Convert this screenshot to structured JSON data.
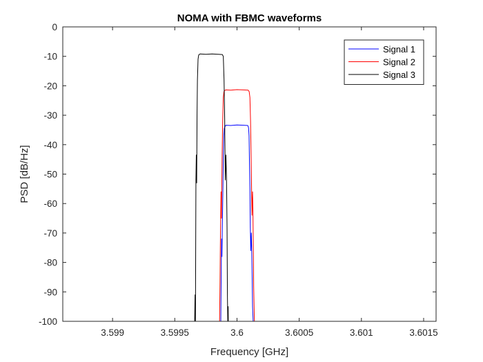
{
  "chart_data": {
    "type": "line",
    "title": "NOMA with FBMC waveforms",
    "xlabel": "Frequency [GHz]",
    "ylabel": "PSD [dB/Hz]",
    "xlim": [
      3.5986,
      3.6016
    ],
    "ylim": [
      -100,
      0
    ],
    "xticks": [
      3.599,
      3.5995,
      3.6,
      3.6005,
      3.601,
      3.6015
    ],
    "xtick_labels": [
      "3.599",
      "3.5995",
      "3.6",
      "3.6005",
      "3.601",
      "3.6015"
    ],
    "yticks": [
      0,
      -10,
      -20,
      -30,
      -40,
      -50,
      -60,
      -70,
      -80,
      -90,
      -100
    ],
    "ytick_labels": [
      "0",
      "-10",
      "-20",
      "-30",
      "-40",
      "-50",
      "-60",
      "-70",
      "-80",
      "-90",
      "-100"
    ],
    "grid": false,
    "legend_position": "top-right",
    "series": [
      {
        "name": "Signal 1",
        "color": "#0000ff",
        "x": [
          3.59987,
          3.599873,
          3.599876,
          3.599879,
          3.599882,
          3.599887,
          3.59989,
          3.599894,
          3.599898,
          3.599902,
          3.599906,
          3.59991,
          3.59995,
          3.6,
          3.60005,
          3.600086,
          3.60009,
          3.600093,
          3.600097,
          3.6001,
          3.600104,
          3.600107,
          3.600111,
          3.600115,
          3.600118,
          3.600122,
          3.600125,
          3.60013
        ],
        "y": [
          -100,
          -85,
          -72,
          -78,
          -68,
          -55,
          -45,
          -37,
          -34.5,
          -34,
          -33.7,
          -33.4,
          -33.5,
          -33.3,
          -33.4,
          -33.5,
          -33.8,
          -34.3,
          -37,
          -45,
          -55,
          -68,
          -76,
          -70,
          -75,
          -85,
          -95,
          -100
        ]
      },
      {
        "name": "Signal 2",
        "color": "#ff0000",
        "x": [
          3.59986,
          3.599863,
          3.599866,
          3.59987,
          3.599872,
          3.599875,
          3.59988,
          3.599885,
          3.59989,
          3.599895,
          3.599902,
          3.59991,
          3.59995,
          3.6,
          3.60005,
          3.60009,
          3.600098,
          3.600104,
          3.600109,
          3.600114,
          3.60012,
          3.600125,
          3.600128,
          3.600131,
          3.600134,
          3.60014
        ],
        "y": [
          -100,
          -88,
          -75,
          -62,
          -56,
          -65,
          -45,
          -32,
          -24,
          -22,
          -21.6,
          -21.4,
          -21.5,
          -21.3,
          -21.4,
          -21.5,
          -22,
          -24,
          -32,
          -45,
          -64,
          -56,
          -62,
          -75,
          -88,
          -100
        ]
      },
      {
        "name": "Signal 3",
        "color": "#000000",
        "x": [
          3.59966,
          3.599663,
          3.599666,
          3.59967,
          3.599673,
          3.599676,
          3.599679,
          3.599682,
          3.599687,
          3.599692,
          3.599698,
          3.599705,
          3.59975,
          3.5998,
          3.59985,
          3.599882,
          3.59989,
          3.599896,
          3.599901,
          3.599906,
          3.599911,
          3.599916,
          3.59992,
          3.599923,
          3.599926,
          3.599929,
          3.59993
        ],
        "y": [
          -100,
          -91,
          -100,
          -52,
          -43.5,
          -53,
          -30,
          -18,
          -11,
          -9.6,
          -9.3,
          -9.2,
          -9.3,
          -9.2,
          -9.3,
          -9.4,
          -10,
          -18,
          -31,
          -52,
          -43.5,
          -52,
          -68,
          -91,
          -100,
          -95,
          -100
        ]
      }
    ]
  }
}
